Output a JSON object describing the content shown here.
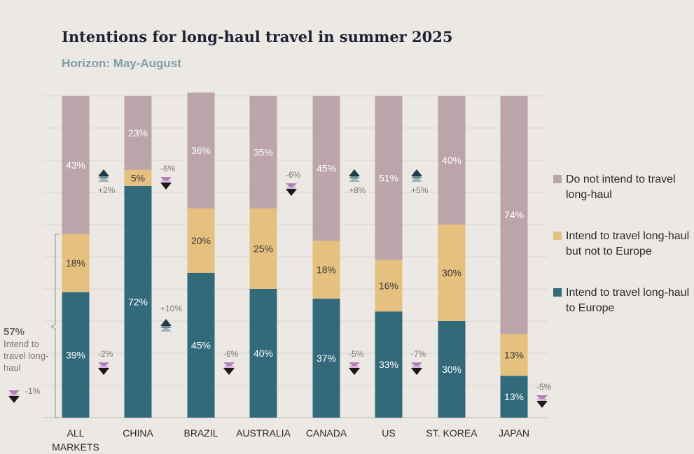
{
  "title": "Intentions for long-haul travel in summer 2025",
  "subtitle": "Horizon: May-August",
  "colors": {
    "background": "#ece8e3",
    "not_intend": "#bba5ab",
    "not_europe": "#e5c07e",
    "europe": "#326a7c",
    "arrow_up": "#1f3b4a",
    "arrow_down": "#1a1a1a",
    "arrow_down_accent": "#b27fb6"
  },
  "legend": [
    {
      "label": "Do not intend to travel long-haul",
      "color": "#bba5ab"
    },
    {
      "label": "Intend to travel long-haul but not to Europe",
      "color": "#e5c07e"
    },
    {
      "label": "Intend to travel long-haul to Europe",
      "color": "#326a7c"
    }
  ],
  "annotation": {
    "value": "57%",
    "text": "Intend to travel long-haul",
    "change": "-1%",
    "direction": "down"
  },
  "chart_data": {
    "type": "bar",
    "stacked": true,
    "orientation": "vertical",
    "categories": [
      "ALL MARKETS",
      "CHINA",
      "BRAZIL",
      "AUSTRALIA",
      "CANADA",
      "US",
      "ST. KOREA",
      "JAPAN"
    ],
    "series": [
      {
        "name": "Intend to travel long-haul to Europe",
        "values": [
          39,
          72,
          45,
          40,
          37,
          33,
          30,
          13
        ]
      },
      {
        "name": "Intend to travel long-haul but not to Europe",
        "values": [
          18,
          5,
          20,
          25,
          18,
          16,
          30,
          13
        ]
      },
      {
        "name": "Do not intend to travel long-haul",
        "values": [
          43,
          23,
          36,
          35,
          45,
          51,
          40,
          74
        ]
      }
    ],
    "change_annotations": [
      {
        "category": "ALL MARKETS",
        "series": "Do not intend to travel long-haul",
        "change": "+2%",
        "direction": "up"
      },
      {
        "category": "ALL MARKETS",
        "series": "Intend to travel long-haul to Europe",
        "change": "-2%",
        "direction": "down"
      },
      {
        "category": "CHINA",
        "series": "Intend to travel long-haul but not to Europe",
        "change": "-6%",
        "direction": "down"
      },
      {
        "category": "CHINA",
        "series": "Intend to travel long-haul to Europe",
        "change": "+10%",
        "direction": "up"
      },
      {
        "category": "BRAZIL",
        "series": "Intend to travel long-haul to Europe",
        "change": "-6%",
        "direction": "down"
      },
      {
        "category": "AUSTRALIA",
        "series": "Do not intend to travel long-haul",
        "change": "-6%",
        "direction": "down"
      },
      {
        "category": "CANADA",
        "series": "Do not intend to travel long-haul",
        "change": "+8%",
        "direction": "up"
      },
      {
        "category": "CANADA",
        "series": "Intend to travel long-haul to Europe",
        "change": "-5%",
        "direction": "down"
      },
      {
        "category": "US",
        "series": "Do not intend to travel long-haul",
        "change": "+5%",
        "direction": "up"
      },
      {
        "category": "US",
        "series": "Intend to travel long-haul to Europe",
        "change": "-7%",
        "direction": "down"
      },
      {
        "category": "JAPAN",
        "series": "Intend to travel long-haul to Europe",
        "change": "-5%",
        "direction": "down"
      }
    ],
    "ylim": [
      0,
      100
    ],
    "grid": true,
    "legend_position": "right"
  }
}
